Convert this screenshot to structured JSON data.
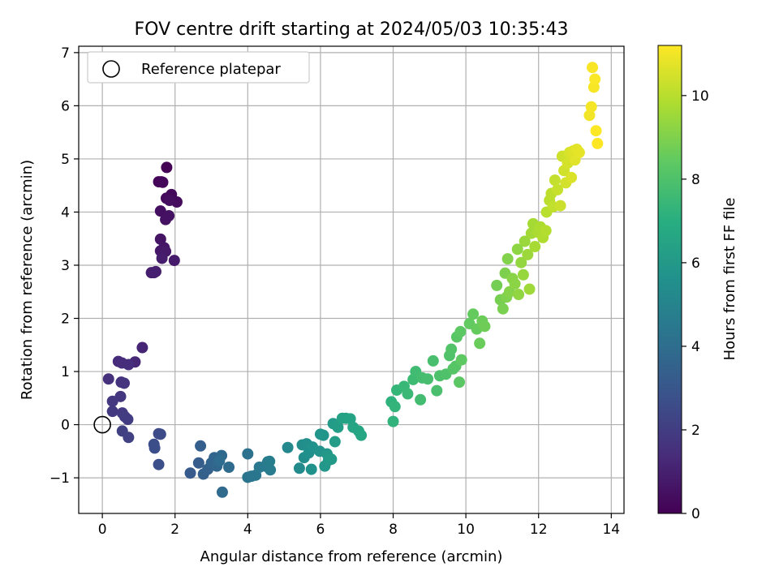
{
  "chart_data": {
    "type": "scatter",
    "title": "FOV centre drift starting at 2024/05/03 10:35:43",
    "xlabel": "Angular distance from reference (arcmin)",
    "ylabel": "Rotation from reference (arcmin)",
    "xlim": [
      -0.65,
      14.35
    ],
    "ylim": [
      -1.67,
      7.12
    ],
    "xticks": [
      0,
      2,
      4,
      6,
      8,
      10,
      12,
      14
    ],
    "yticks": [
      -1,
      0,
      1,
      2,
      3,
      4,
      5,
      6,
      7
    ],
    "xtick_labels": [
      "0",
      "2",
      "4",
      "6",
      "8",
      "10",
      "12",
      "14"
    ],
    "ytick_labels": [
      "−1",
      "0",
      "1",
      "2",
      "3",
      "4",
      "5",
      "6",
      "7"
    ],
    "grid": true,
    "legend": {
      "position": "upper-left",
      "entries": [
        "Reference platepar"
      ]
    },
    "reference_point": {
      "x": 0,
      "y": 0,
      "marker": "open-circle"
    },
    "colorbar": {
      "label": "Hours from first FF file",
      "colormap": "viridis",
      "range": [
        0,
        11.2
      ],
      "ticks": [
        0,
        2,
        4,
        6,
        8,
        10
      ],
      "tick_labels": [
        "0",
        "2",
        "4",
        "6",
        "8",
        "10"
      ]
    },
    "series": [
      {
        "points": [
          [
            1.77,
            4.84,
            0.05
          ],
          [
            1.55,
            4.57,
            0.1
          ],
          [
            1.62,
            4.57,
            0.15
          ],
          [
            1.66,
            4.56,
            0.2
          ],
          [
            1.9,
            4.33,
            0.25
          ],
          [
            1.76,
            4.26,
            0.3
          ],
          [
            2.05,
            4.19,
            0.35
          ],
          [
            1.85,
            4.22,
            0.4
          ],
          [
            1.6,
            4.02,
            0.45
          ],
          [
            1.83,
            3.93,
            0.5
          ],
          [
            1.74,
            3.86,
            0.55
          ],
          [
            1.6,
            3.49,
            0.6
          ],
          [
            1.7,
            3.33,
            0.65
          ],
          [
            1.6,
            3.27,
            0.7
          ],
          [
            1.74,
            3.26,
            0.75
          ],
          [
            1.98,
            3.09,
            0.8
          ],
          [
            1.64,
            3.13,
            0.85
          ],
          [
            1.35,
            2.86,
            0.9
          ],
          [
            1.47,
            2.88,
            0.95
          ],
          [
            1.42,
            2.86,
            1.0
          ],
          [
            1.1,
            1.45,
            1.15
          ],
          [
            0.9,
            1.18,
            1.25
          ],
          [
            0.44,
            1.19,
            1.35
          ],
          [
            0.54,
            1.16,
            1.4
          ],
          [
            0.72,
            1.13,
            1.45
          ],
          [
            0.17,
            0.86,
            1.55
          ],
          [
            0.52,
            0.8,
            1.6
          ],
          [
            0.6,
            0.78,
            1.65
          ],
          [
            0.5,
            0.53,
            1.75
          ],
          [
            0.28,
            0.44,
            1.8
          ],
          [
            0.28,
            0.25,
            1.85
          ],
          [
            0.55,
            0.22,
            1.9
          ],
          [
            0.62,
            0.15,
            1.95
          ],
          [
            0.7,
            0.1,
            2.0
          ],
          [
            0.55,
            -0.12,
            2.1
          ],
          [
            0.72,
            -0.24,
            2.15
          ],
          [
            1.55,
            -0.17,
            2.5
          ],
          [
            1.6,
            -0.18,
            2.55
          ],
          [
            1.42,
            -0.37,
            2.6
          ],
          [
            1.44,
            -0.44,
            2.65
          ],
          [
            1.55,
            -0.75,
            2.7
          ],
          [
            2.42,
            -0.91,
            3.2
          ],
          [
            2.65,
            -0.72,
            3.3
          ],
          [
            2.7,
            -0.4,
            3.35
          ],
          [
            2.78,
            -0.93,
            3.4
          ],
          [
            2.9,
            -0.84,
            3.5
          ],
          [
            3.0,
            -0.72,
            3.6
          ],
          [
            3.08,
            -0.62,
            3.65
          ],
          [
            3.15,
            -0.78,
            3.7
          ],
          [
            3.28,
            -0.58,
            3.8
          ],
          [
            3.3,
            -1.27,
            3.85
          ],
          [
            3.48,
            -0.8,
            3.9
          ],
          [
            3.22,
            -0.68,
            3.95
          ],
          [
            4.0,
            -0.55,
            4.2
          ],
          [
            4.0,
            -0.99,
            4.3
          ],
          [
            4.1,
            -0.97,
            4.35
          ],
          [
            4.22,
            -0.95,
            4.4
          ],
          [
            4.32,
            -0.8,
            4.5
          ],
          [
            4.48,
            -0.78,
            4.55
          ],
          [
            4.55,
            -0.7,
            4.6
          ],
          [
            4.62,
            -0.85,
            4.65
          ],
          [
            4.6,
            -0.69,
            4.7
          ],
          [
            5.1,
            -0.43,
            5.2
          ],
          [
            5.42,
            -0.82,
            5.35
          ],
          [
            5.5,
            -0.38,
            5.4
          ],
          [
            5.55,
            -0.62,
            5.45
          ],
          [
            5.62,
            -0.36,
            5.5
          ],
          [
            5.68,
            -0.53,
            5.55
          ],
          [
            5.75,
            -0.84,
            5.6
          ],
          [
            5.78,
            -0.42,
            5.65
          ],
          [
            5.98,
            -0.5,
            5.75
          ],
          [
            6.0,
            -0.18,
            5.8
          ],
          [
            6.08,
            -0.2,
            5.85
          ],
          [
            6.12,
            -0.78,
            5.9
          ],
          [
            6.18,
            -0.55,
            5.95
          ],
          [
            6.22,
            -0.67,
            6.0
          ],
          [
            6.3,
            -0.65,
            6.05
          ],
          [
            6.35,
            0.02,
            6.1
          ],
          [
            6.4,
            -0.32,
            6.15
          ],
          [
            6.48,
            -0.05,
            6.2
          ],
          [
            6.6,
            0.12,
            6.35
          ],
          [
            6.7,
            0.12,
            6.4
          ],
          [
            6.82,
            0.11,
            6.45
          ],
          [
            6.9,
            -0.05,
            6.5
          ],
          [
            7.05,
            -0.12,
            6.55
          ],
          [
            7.12,
            -0.2,
            6.6
          ],
          [
            7.95,
            0.43,
            7.2
          ],
          [
            8.0,
            0.06,
            7.25
          ],
          [
            8.05,
            0.34,
            7.3
          ],
          [
            8.1,
            0.65,
            7.35
          ],
          [
            8.3,
            0.72,
            7.45
          ],
          [
            8.4,
            0.58,
            7.5
          ],
          [
            8.55,
            0.85,
            7.6
          ],
          [
            8.62,
            1.0,
            7.65
          ],
          [
            8.75,
            0.47,
            7.7
          ],
          [
            8.8,
            0.88,
            7.75
          ],
          [
            8.95,
            0.86,
            7.8
          ],
          [
            9.1,
            1.2,
            7.85
          ],
          [
            9.2,
            0.64,
            7.9
          ],
          [
            9.28,
            0.92,
            7.95
          ],
          [
            9.45,
            0.95,
            8.0
          ],
          [
            9.55,
            1.3,
            8.05
          ],
          [
            9.6,
            1.42,
            8.1
          ],
          [
            9.65,
            1.05,
            8.15
          ],
          [
            9.72,
            1.1,
            8.2
          ],
          [
            9.75,
            1.65,
            8.25
          ],
          [
            9.82,
            0.8,
            8.3
          ],
          [
            9.85,
            1.75,
            8.35
          ],
          [
            9.88,
            1.22,
            8.4
          ],
          [
            10.1,
            1.9,
            8.45
          ],
          [
            10.2,
            2.08,
            8.5
          ],
          [
            10.3,
            1.8,
            8.55
          ],
          [
            10.38,
            1.53,
            8.6
          ],
          [
            10.45,
            1.95,
            8.65
          ],
          [
            10.52,
            1.85,
            8.7
          ],
          [
            10.85,
            2.62,
            8.8
          ],
          [
            10.95,
            2.35,
            8.85
          ],
          [
            11.02,
            2.18,
            8.9
          ],
          [
            11.08,
            2.85,
            8.95
          ],
          [
            11.12,
            2.4,
            9.0
          ],
          [
            11.15,
            3.12,
            9.05
          ],
          [
            11.2,
            2.5,
            9.1
          ],
          [
            11.28,
            2.75,
            9.15
          ],
          [
            11.35,
            2.65,
            9.2
          ],
          [
            11.42,
            3.3,
            9.25
          ],
          [
            11.45,
            2.45,
            9.3
          ],
          [
            11.52,
            3.05,
            9.35
          ],
          [
            11.58,
            2.82,
            9.4
          ],
          [
            11.62,
            3.45,
            9.45
          ],
          [
            11.7,
            3.2,
            9.5
          ],
          [
            11.75,
            2.55,
            9.55
          ],
          [
            11.8,
            3.6,
            9.6
          ],
          [
            11.85,
            3.78,
            9.65
          ],
          [
            11.9,
            3.35,
            9.7
          ],
          [
            11.98,
            3.62,
            9.75
          ],
          [
            12.05,
            3.72,
            9.8
          ],
          [
            12.12,
            3.52,
            9.85
          ],
          [
            12.2,
            3.65,
            9.9
          ],
          [
            12.22,
            4.0,
            10.0
          ],
          [
            12.3,
            4.22,
            10.05
          ],
          [
            12.35,
            4.35,
            10.1
          ],
          [
            12.4,
            4.1,
            10.15
          ],
          [
            12.45,
            4.6,
            10.2
          ],
          [
            12.52,
            4.42,
            10.25
          ],
          [
            12.6,
            4.12,
            10.3
          ],
          [
            12.65,
            5.05,
            10.35
          ],
          [
            12.7,
            4.78,
            10.4
          ],
          [
            12.75,
            4.55,
            10.45
          ],
          [
            12.8,
            4.92,
            10.5
          ],
          [
            12.85,
            5.12,
            10.55
          ],
          [
            12.9,
            4.65,
            10.6
          ],
          [
            12.95,
            5.15,
            10.65
          ],
          [
            13.0,
            4.98,
            10.7
          ],
          [
            13.05,
            5.18,
            10.75
          ],
          [
            13.12,
            5.12,
            10.8
          ],
          [
            13.4,
            5.82,
            11.0
          ],
          [
            13.45,
            5.98,
            11.05
          ],
          [
            13.52,
            6.35,
            11.1
          ],
          [
            13.48,
            6.72,
            11.12
          ],
          [
            13.55,
            6.5,
            11.15
          ],
          [
            13.58,
            5.53,
            11.18
          ],
          [
            13.62,
            5.29,
            11.2
          ]
        ]
      }
    ]
  }
}
